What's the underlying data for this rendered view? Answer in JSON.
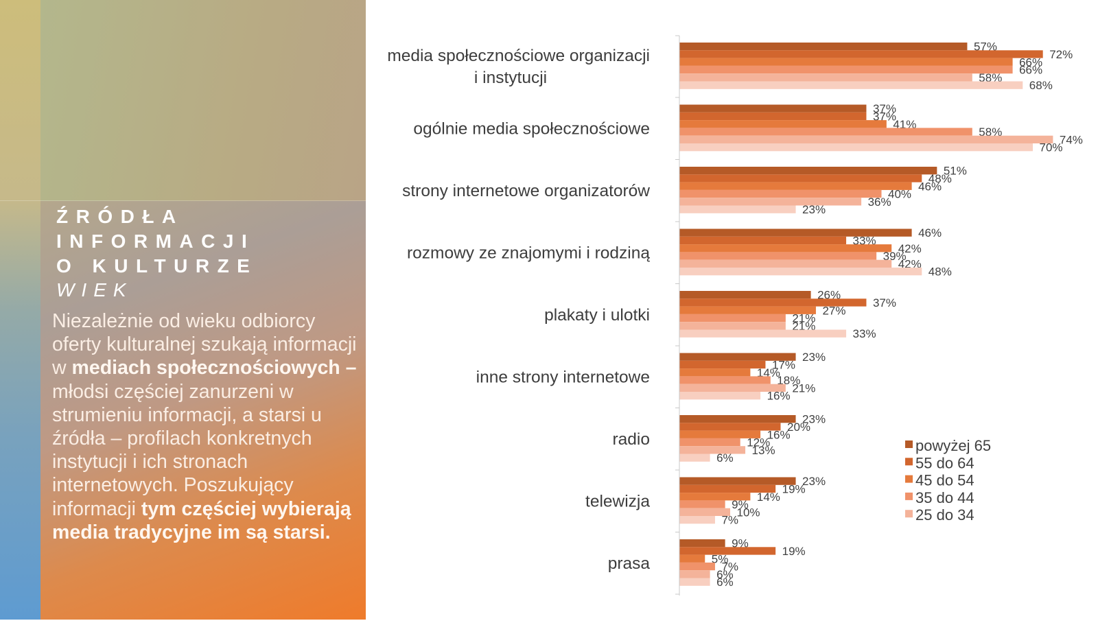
{
  "panel": {
    "title_lines": [
      "ŹRÓDŁA",
      "INFORMACJI",
      "O KULTURZE"
    ],
    "subtitle": "WIEK",
    "desc": {
      "p1": "Niezależnie od wieku odbiorcy oferty kulturalnej szukają informacji w ",
      "b1": "mediach społecznościowych –",
      "p2": " młodsi częściej zanurzeni w strumieniu informacji, a starsi u źródła – profilach konkretnych instytucji i ich stronach internetowych. Poszukujący informacji ",
      "b2": "tym częściej wybierają media tradycyjne im są starsi."
    }
  },
  "chart_data": {
    "type": "bar",
    "orientation": "horizontal",
    "categories": [
      [
        "media społecznościowe organizacji",
        "i instytucji"
      ],
      [
        "ogólnie media społecznościowe"
      ],
      [
        "strony internetowe organizatorów"
      ],
      [
        "rozmowy ze znajomymi i rodziną"
      ],
      [
        "plakaty i ulotki"
      ],
      [
        "inne strony internetowe"
      ],
      [
        "radio"
      ],
      [
        "telewizja"
      ],
      [
        "prasa"
      ]
    ],
    "series": [
      {
        "name": "powyżej 65",
        "color": "#b55a27",
        "values": [
          57,
          37,
          51,
          46,
          26,
          23,
          23,
          23,
          9
        ]
      },
      {
        "name": "55 do 64",
        "color": "#d2662e",
        "values": [
          72,
          37,
          48,
          33,
          37,
          17,
          20,
          19,
          19
        ]
      },
      {
        "name": "45 do 54",
        "color": "#e57a3c",
        "values": [
          66,
          41,
          46,
          42,
          27,
          14,
          16,
          14,
          5
        ]
      },
      {
        "name": "35 do 44",
        "color": "#f0926a",
        "values": [
          66,
          58,
          40,
          39,
          21,
          18,
          12,
          9,
          7
        ]
      },
      {
        "name": "25 do 34",
        "color": "#f4b39a",
        "values": [
          58,
          74,
          36,
          42,
          21,
          21,
          13,
          10,
          6
        ]
      },
      {
        "name": "",
        "color": "#f8cfc0",
        "values": [
          68,
          70,
          23,
          48,
          33,
          16,
          6,
          7,
          6
        ]
      }
    ],
    "value_suffix": "%",
    "xlim": [
      0,
      74
    ],
    "grid": false,
    "legend": "right"
  }
}
